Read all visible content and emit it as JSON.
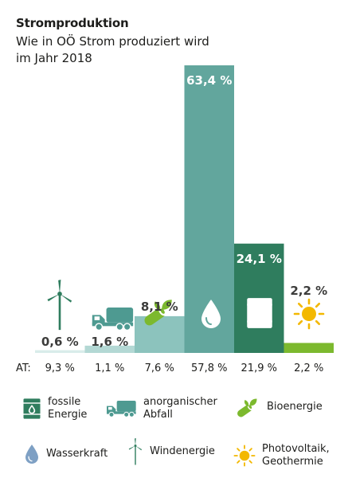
{
  "header": {
    "title": "Stromproduktion",
    "subtitle": "Wie in OÖ Strom produziert wird im Jahr 2018"
  },
  "chart_data": {
    "type": "bar",
    "title": "Stromproduktion",
    "subtitle": "Wie in OÖ Strom produziert wird im Jahr 2018",
    "ylim": [
      0,
      63.4
    ],
    "grid": false,
    "at_label": "AT:",
    "categories": [
      "Windenergie",
      "anorganischer Abfall",
      "Bioenergie",
      "Wasserkraft",
      "fossile Energie",
      "Photovoltaik, Geothermie"
    ],
    "values": [
      0.6,
      1.6,
      8.1,
      63.4,
      24.1,
      2.2
    ],
    "value_labels": [
      "0,6 %",
      "1,6 %",
      "8,1 %",
      "63,4 %",
      "24,1 %",
      "2,2 %"
    ],
    "at_values": [
      9.3,
      1.1,
      7.6,
      57.8,
      21.9,
      2.2
    ],
    "at_labels": [
      "9,3 %",
      "1,1 %",
      "7,6 %",
      "57,8 %",
      "21,9 %",
      "2,2 %"
    ],
    "bar_colors": [
      "#d9ecea",
      "#b3d8d4",
      "#8cc3bd",
      "#62a69d",
      "#2f7d5e",
      "#7cb92e"
    ],
    "legend_position": "bottom"
  },
  "legend": [
    {
      "icon": "oil-barrel-icon",
      "label": "fossile Energie",
      "lines": [
        "fossile",
        "Energie"
      ]
    },
    {
      "icon": "garbage-truck-icon",
      "label": "anorganischer Abfall",
      "lines": [
        "anorganischer",
        "Abfall"
      ]
    },
    {
      "icon": "wood-log-leaf-icon",
      "label": "Bioenergie",
      "lines": [
        "Bioenergie"
      ]
    },
    {
      "icon": "water-drop-icon",
      "label": "Wasserkraft",
      "lines": [
        "Wasserkraft"
      ]
    },
    {
      "icon": "wind-turbine-icon",
      "label": "Windenergie",
      "lines": [
        "Windenergie"
      ]
    },
    {
      "icon": "sun-icon",
      "label": "Photovoltaik, Geothermie",
      "lines": [
        "Photovoltaik,",
        "Geothermie"
      ]
    }
  ],
  "colors": {
    "icon_teal": "#4e9a91",
    "icon_dark_green": "#2f7d5e",
    "icon_light_green": "#7cb92e",
    "icon_blue": "#7ea0c4",
    "sun": "#f3b800",
    "text": "#1d1d1b"
  }
}
